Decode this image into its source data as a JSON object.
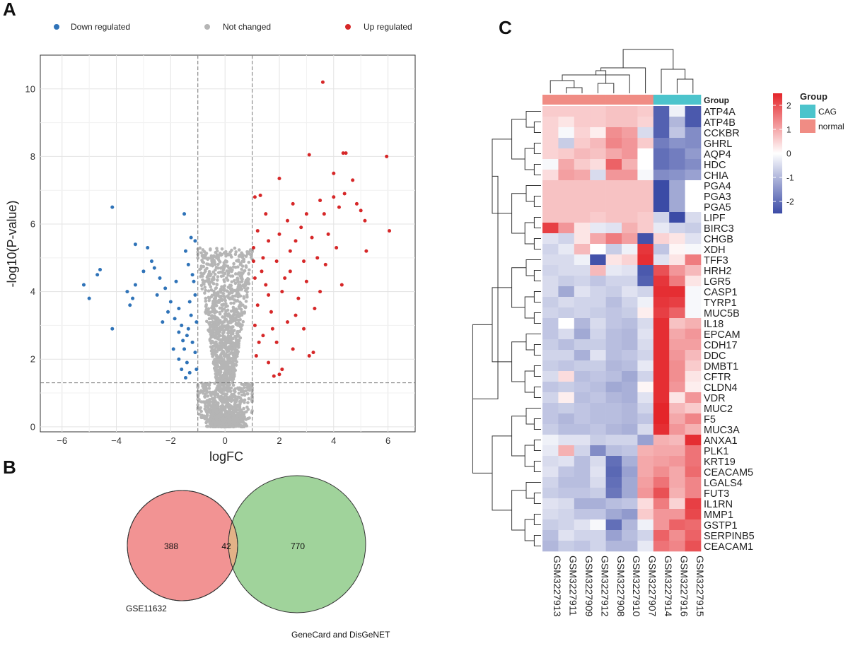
{
  "panels": {
    "a": "A",
    "b": "B",
    "c": "C"
  },
  "volcano": {
    "legend": [
      {
        "label": "Down regulated",
        "color": "#2f73b8"
      },
      {
        "label": "Not changed",
        "color": "#b5b5b5"
      },
      {
        "label": "Up regulated",
        "color": "#d62728"
      }
    ]
  },
  "venn": {
    "left_only": "388",
    "overlap": "42",
    "right_only": "770",
    "left_label": "GSE11632",
    "right_label": "GeneCard and DisGeNET",
    "left_color": "#f08080",
    "right_color": "#8fcb8a"
  },
  "heatmap": {
    "group_label": "Group",
    "legend_title": "Group",
    "groups": [
      {
        "label": "CAG",
        "color": "#4cc4cc"
      },
      {
        "label": "normal",
        "color": "#f08c84"
      }
    ],
    "scale_ticks": [
      "2",
      "1",
      "0",
      "-1",
      "-2"
    ],
    "samples": [
      "GSM3227913",
      "GSM3227911",
      "GSM3227909",
      "GSM3227912",
      "GSM3227908",
      "GSM3227910",
      "GSM3227907",
      "GSM3227914",
      "GSM3227916",
      "GSM3227915"
    ],
    "sample_groups": [
      "normal",
      "normal",
      "normal",
      "normal",
      "normal",
      "normal",
      "normal",
      "CAG",
      "CAG",
      "CAG"
    ],
    "genes": [
      "ATP4A",
      "ATP4B",
      "CCKBR",
      "GHRL",
      "AQP4",
      "HDC",
      "CHIA",
      "PGA4",
      "PGA3",
      "PGA5",
      "LIPF",
      "BIRC3",
      "CHGB",
      "XDH",
      "TFF3",
      "HRH2",
      "LGR5",
      "CASP1",
      "TYRP1",
      "MUC5B",
      "IL18",
      "EPCAM",
      "CDH17",
      "DDC",
      "DMBT1",
      "CFTR",
      "CLDN4",
      "VDR",
      "MUC2",
      "F5",
      "MUC3A",
      "ANXA1",
      "PLK1",
      "KRT19",
      "CEACAM5",
      "LGALS4",
      "FUT3",
      "IL1RN",
      "MMP1",
      "GSTP1",
      "SERPINB5",
      "CEACAM1"
    ],
    "values": [
      [
        0.6,
        0.6,
        0.6,
        0.6,
        0.7,
        0.7,
        0.6,
        -2.2,
        -0.2,
        -2.3
      ],
      [
        0.5,
        0.3,
        0.6,
        0.6,
        0.7,
        0.7,
        0.5,
        -2.2,
        -1.0,
        -2.3
      ],
      [
        0.5,
        -0.1,
        0.5,
        0.2,
        1.3,
        1.1,
        -0.5,
        -2.2,
        -0.8,
        -1.6
      ],
      [
        0.5,
        -0.7,
        0.6,
        0.8,
        1.4,
        1.2,
        0.6,
        -1.8,
        -1.5,
        -1.6
      ],
      [
        0.5,
        0.6,
        0.8,
        0.7,
        1.0,
        1.2,
        0.0,
        -2.0,
        -1.8,
        -1.4
      ],
      [
        -0.1,
        1.0,
        0.6,
        0.4,
        1.8,
        0.9,
        0.0,
        -2.0,
        -1.8,
        -1.6
      ],
      [
        0.4,
        1.1,
        1.0,
        -0.5,
        1.2,
        1.2,
        -0.1,
        -1.6,
        -1.5,
        -1.3
      ],
      [
        0.7,
        0.7,
        0.7,
        0.7,
        0.7,
        0.7,
        0.7,
        -2.5,
        -1.2,
        0.0
      ],
      [
        0.7,
        0.7,
        0.7,
        0.7,
        0.7,
        0.7,
        0.7,
        -2.5,
        -1.2,
        0.0
      ],
      [
        0.7,
        0.7,
        0.7,
        0.7,
        0.7,
        0.7,
        0.7,
        -2.5,
        -1.2,
        0.0
      ],
      [
        0.7,
        0.7,
        0.7,
        0.6,
        0.7,
        0.7,
        0.6,
        -0.6,
        -2.5,
        -0.5
      ],
      [
        2.2,
        1.2,
        0.3,
        -0.3,
        -0.4,
        0.9,
        0.6,
        -0.3,
        -0.6,
        -0.7
      ],
      [
        -0.4,
        -0.6,
        0.3,
        1.0,
        1.5,
        1.1,
        -2.4,
        0.5,
        0.3,
        -0.4
      ],
      [
        -0.6,
        -0.3,
        0.8,
        0.0,
        -0.7,
        -0.2,
        2.3,
        -0.8,
        0.1,
        -0.1
      ],
      [
        -0.5,
        -0.5,
        -0.2,
        -2.4,
        0.3,
        0.5,
        2.4,
        -0.4,
        0.3,
        1.5
      ],
      [
        -0.6,
        -0.5,
        -0.5,
        0.8,
        -0.3,
        -0.4,
        -2.3,
        2.0,
        1.2,
        0.8
      ],
      [
        -0.5,
        -0.7,
        -0.6,
        -0.8,
        -0.6,
        -0.6,
        -2.2,
        2.3,
        1.5,
        0.3
      ],
      [
        -0.5,
        -1.2,
        -0.4,
        -0.6,
        -0.7,
        -0.4,
        -0.6,
        2.4,
        2.4,
        -0.1
      ],
      [
        -0.7,
        -0.5,
        -0.6,
        -0.6,
        -0.9,
        -0.6,
        -0.2,
        2.3,
        2.2,
        -0.1
      ],
      [
        -0.6,
        -0.7,
        -0.6,
        -0.7,
        -0.8,
        -0.7,
        0.2,
        2.2,
        1.8,
        -0.1
      ],
      [
        -0.8,
        0.0,
        -1.0,
        -0.5,
        -0.8,
        -0.9,
        -0.5,
        2.4,
        0.7,
        0.9
      ],
      [
        -0.8,
        -0.5,
        -1.2,
        -0.6,
        -0.9,
        -1.0,
        -0.4,
        2.4,
        1.0,
        1.2
      ],
      [
        -0.7,
        -0.9,
        -0.7,
        -0.7,
        -0.9,
        -1.0,
        -0.5,
        2.4,
        1.1,
        1.1
      ],
      [
        -0.6,
        -0.6,
        -1.1,
        -0.4,
        -0.9,
        -0.8,
        -0.6,
        2.4,
        1.2,
        0.8
      ],
      [
        -0.7,
        -0.8,
        -0.7,
        -0.7,
        -1.0,
        -0.9,
        -0.3,
        2.4,
        1.3,
        0.6
      ],
      [
        -0.5,
        0.4,
        -0.9,
        -0.8,
        -0.9,
        -1.2,
        -0.6,
        2.4,
        1.3,
        0.3
      ],
      [
        -0.8,
        -0.7,
        -0.8,
        -0.9,
        -1.2,
        -1.1,
        0.1,
        2.4,
        1.2,
        0.2
      ],
      [
        -0.6,
        0.2,
        -0.9,
        -0.8,
        -1.0,
        -1.1,
        -0.4,
        2.4,
        0.3,
        1.2
      ],
      [
        -0.8,
        -0.7,
        -0.8,
        -0.9,
        -0.9,
        -1.0,
        -0.6,
        2.5,
        0.8,
        0.6
      ],
      [
        -0.8,
        -1.0,
        -0.8,
        -0.9,
        -0.9,
        -1.0,
        -0.8,
        2.5,
        1.0,
        1.4
      ],
      [
        -0.7,
        -0.9,
        -0.9,
        -0.8,
        -1.0,
        -1.1,
        -0.5,
        2.4,
        1.2,
        0.9
      ],
      [
        -0.2,
        -0.4,
        -0.4,
        -0.7,
        -0.6,
        -0.6,
        -1.3,
        0.9,
        0.8,
        2.4
      ],
      [
        -0.3,
        0.9,
        -0.6,
        -1.6,
        -0.9,
        -0.8,
        0.9,
        1.0,
        1.0,
        1.6
      ],
      [
        -0.5,
        -0.4,
        -0.9,
        -0.5,
        -2.0,
        -1.1,
        1.0,
        1.1,
        1.2,
        1.6
      ],
      [
        -0.4,
        -0.8,
        -0.9,
        -0.4,
        -2.1,
        -1.3,
        1.0,
        1.3,
        1.0,
        1.7
      ],
      [
        -0.6,
        -0.9,
        -0.9,
        -0.5,
        -2.0,
        -1.2,
        1.1,
        1.6,
        1.0,
        1.4
      ],
      [
        -0.7,
        -0.8,
        -0.8,
        -0.7,
        -1.9,
        -1.2,
        1.2,
        2.0,
        0.9,
        1.4
      ],
      [
        -0.4,
        -0.5,
        -1.1,
        -1.1,
        -0.9,
        -0.8,
        0.4,
        1.5,
        0.5,
        2.2
      ],
      [
        -0.5,
        -0.6,
        -0.8,
        -0.8,
        -1.2,
        -1.4,
        0.6,
        1.2,
        1.2,
        2.1
      ],
      [
        -0.7,
        -0.6,
        -0.4,
        -0.1,
        -2.0,
        -1.0,
        -0.2,
        1.2,
        1.8,
        1.7
      ],
      [
        -0.9,
        -0.4,
        -0.6,
        -0.6,
        -1.3,
        -0.9,
        -0.6,
        1.8,
        1.3,
        1.8
      ],
      [
        -1.0,
        -0.7,
        -0.8,
        -0.6,
        -1.0,
        -1.0,
        -0.3,
        1.6,
        1.4,
        2.0
      ]
    ]
  },
  "chart_data": [
    {
      "type": "scatter",
      "title": "",
      "xlabel": "logFC",
      "ylabel": "-log10(P-value)",
      "xlim": [
        -6.8,
        7.0
      ],
      "ylim": [
        -0.15,
        11.0
      ],
      "xticks": [
        "−6",
        "−4",
        "−2",
        "0",
        "2",
        "4",
        "6"
      ],
      "yticks": [
        "0",
        "2",
        "4",
        "6",
        "8",
        "10"
      ],
      "thresholds": {
        "logFC": [
          -1,
          1
        ],
        "neglog10p": 1.3
      },
      "series": [
        {
          "name": "Down regulated",
          "points": [
            [
              -4.15,
              6.5
            ],
            [
              -5.2,
              4.2
            ],
            [
              -5.0,
              3.8
            ],
            [
              -4.6,
              4.65
            ],
            [
              -4.7,
              4.5
            ],
            [
              -4.15,
              2.9
            ],
            [
              -3.3,
              5.4
            ],
            [
              -3.4,
              3.8
            ],
            [
              -3.5,
              3.6
            ],
            [
              -3.3,
              4.2
            ],
            [
              -2.85,
              5.3
            ],
            [
              -2.7,
              4.9
            ],
            [
              -2.6,
              4.7
            ],
            [
              -2.4,
              4.4
            ],
            [
              -2.2,
              4.1
            ],
            [
              -2.0,
              3.7
            ],
            [
              -1.85,
              3.2
            ],
            [
              -1.7,
              2.8
            ],
            [
              -1.5,
              6.3
            ],
            [
              -1.25,
              5.6
            ],
            [
              -1.45,
              5.2
            ],
            [
              -1.35,
              4.8
            ],
            [
              -1.1,
              5.5
            ],
            [
              -2.1,
              3.4
            ],
            [
              -1.9,
              2.3
            ],
            [
              -1.6,
              1.7
            ],
            [
              -1.4,
              1.9
            ],
            [
              -1.3,
              1.6
            ],
            [
              -1.2,
              2.5
            ],
            [
              -1.5,
              2.3
            ],
            [
              -1.7,
              3.5
            ],
            [
              -2.5,
              3.9
            ],
            [
              -3.0,
              4.6
            ],
            [
              -3.6,
              4.0
            ],
            [
              -1.15,
              4.3
            ],
            [
              -1.05,
              3.1
            ],
            [
              -1.8,
              4.3
            ],
            [
              -1.3,
              3.7
            ],
            [
              -1.2,
              4.5
            ],
            [
              -1.6,
              3.0
            ],
            [
              -1.4,
              2.7
            ],
            [
              -1.1,
              2.2
            ],
            [
              -1.25,
              3.3
            ],
            [
              -1.35,
              2.9
            ],
            [
              -1.55,
              2.55
            ],
            [
              -1.1,
              3.9
            ],
            [
              -1.7,
              2.0
            ],
            [
              -2.3,
              3.1
            ],
            [
              -1.45,
              1.45
            ],
            [
              -1.05,
              1.7
            ]
          ]
        },
        {
          "name": "Up regulated",
          "points": [
            [
              3.6,
              10.2
            ],
            [
              4.35,
              8.1
            ],
            [
              4.45,
              8.1
            ],
            [
              3.1,
              8.05
            ],
            [
              5.95,
              8.0
            ],
            [
              4.0,
              7.5
            ],
            [
              4.7,
              7.3
            ],
            [
              2.0,
              7.35
            ],
            [
              3.5,
              6.7
            ],
            [
              4.0,
              6.8
            ],
            [
              5.0,
              6.4
            ],
            [
              5.15,
              6.1
            ],
            [
              6.05,
              5.8
            ],
            [
              3.65,
              6.3
            ],
            [
              4.2,
              6.5
            ],
            [
              4.4,
              6.9
            ],
            [
              4.85,
              6.6
            ],
            [
              2.5,
              6.6
            ],
            [
              3.0,
              6.3
            ],
            [
              1.1,
              6.8
            ],
            [
              1.3,
              6.85
            ],
            [
              1.5,
              6.3
            ],
            [
              2.3,
              6.1
            ],
            [
              2.8,
              5.9
            ],
            [
              3.2,
              5.6
            ],
            [
              3.8,
              5.7
            ],
            [
              4.1,
              5.3
            ],
            [
              5.2,
              5.2
            ],
            [
              1.2,
              5.8
            ],
            [
              1.6,
              5.5
            ],
            [
              2.0,
              5.7
            ],
            [
              2.6,
              5.5
            ],
            [
              1.4,
              5.0
            ],
            [
              1.9,
              4.9
            ],
            [
              2.4,
              4.6
            ],
            [
              3.0,
              4.3
            ],
            [
              3.5,
              4.0
            ],
            [
              4.3,
              4.2
            ],
            [
              1.1,
              4.4
            ],
            [
              1.5,
              4.2
            ],
            [
              2.1,
              4.0
            ],
            [
              2.7,
              3.8
            ],
            [
              3.3,
              3.5
            ],
            [
              1.2,
              3.6
            ],
            [
              1.7,
              3.4
            ],
            [
              2.3,
              3.1
            ],
            [
              2.9,
              2.9
            ],
            [
              1.1,
              3.0
            ],
            [
              1.4,
              2.7
            ],
            [
              1.9,
              2.5
            ],
            [
              2.5,
              2.3
            ],
            [
              3.1,
              2.1
            ],
            [
              1.6,
              1.9
            ],
            [
              2.1,
              1.7
            ],
            [
              1.15,
              2.1
            ],
            [
              1.8,
              1.5
            ],
            [
              2.0,
              1.55
            ],
            [
              3.25,
              2.2
            ],
            [
              1.05,
              4.9
            ],
            [
              1.35,
              4.6
            ],
            [
              1.6,
              3.9
            ],
            [
              2.2,
              4.4
            ],
            [
              2.6,
              3.3
            ],
            [
              3.7,
              4.8
            ],
            [
              1.25,
              2.5
            ],
            [
              1.75,
              2.9
            ],
            [
              2.4,
              5.2
            ],
            [
              2.9,
              4.9
            ],
            [
              3.4,
              5.0
            ],
            [
              1.05,
              5.3
            ]
          ]
        }
      ]
    },
    {
      "type": "heatmap",
      "title": "",
      "note": "Clustered heatmap of 42 genes x 10 samples; values are row z-scores (see heatmap.values)",
      "color_scale": {
        "min": -2.5,
        "max": 2.5,
        "low": "#3b4ba6",
        "mid": "#ffffff",
        "high": "#e4252a"
      }
    }
  ]
}
